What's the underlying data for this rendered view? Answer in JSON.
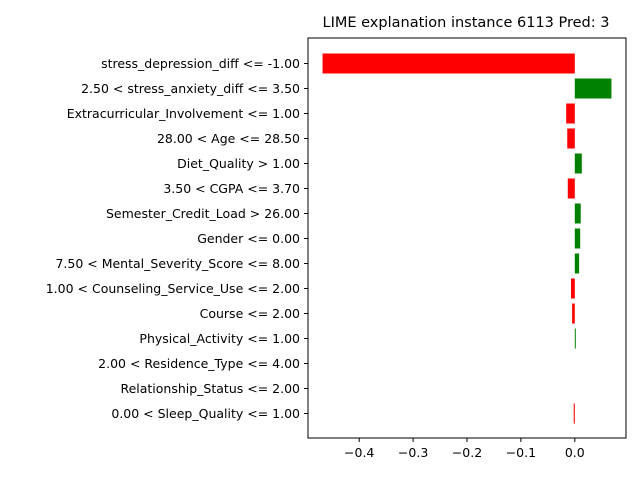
{
  "chart_data": {
    "type": "bar",
    "orientation": "horizontal",
    "title": "LIME explanation instance 6113 Pred: 3",
    "xlabel": "",
    "ylabel": "",
    "xlim": [
      -0.495,
      0.095
    ],
    "xticks": [
      -0.4,
      -0.3,
      -0.2,
      -0.1,
      0.0
    ],
    "xtick_labels": [
      "−0.4",
      "−0.3",
      "−0.2",
      "−0.1",
      "0.0"
    ],
    "categories": [
      "stress_depression_diff <= -1.00",
      "2.50 < stress_anxiety_diff <= 3.50",
      "Extracurricular_Involvement <= 1.00",
      "28.00 < Age <= 28.50",
      "Diet_Quality > 1.00",
      "3.50 < CGPA <= 3.70",
      "Semester_Credit_Load > 26.00",
      "Gender <= 0.00",
      "7.50 < Mental_Severity_Score <= 8.00",
      "1.00 < Counseling_Service_Use <= 2.00",
      "Course <= 2.00",
      "Physical_Activity <= 1.00",
      "2.00 < Residence_Type <= 4.00",
      "Relationship_Status <= 2.00",
      "0.00 < Sleep_Quality <= 1.00"
    ],
    "values": [
      -0.468,
      0.068,
      -0.016,
      -0.014,
      0.013,
      -0.013,
      0.011,
      0.01,
      0.008,
      -0.007,
      -0.005,
      0.001,
      0.0,
      0.0,
      -0.002
    ],
    "colors": {
      "positive": "#008000",
      "negative": "#ff0000"
    },
    "grid": false,
    "legend": "none"
  }
}
